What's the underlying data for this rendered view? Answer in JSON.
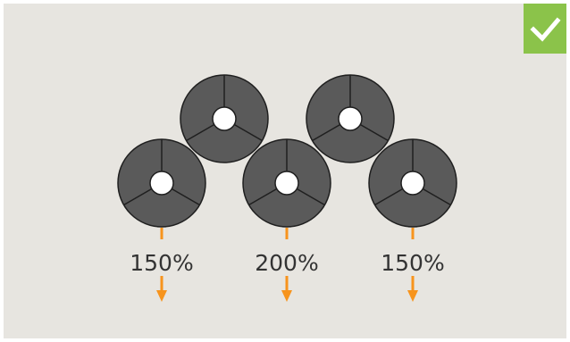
{
  "status_badge": {
    "icon": "checkmark-icon",
    "color": "#8bc34a"
  },
  "colors": {
    "background": "#e7e5e0",
    "wheel_fill": "#5a5a5a",
    "wheel_stroke": "#1f1f1f",
    "hub_fill": "#ffffff",
    "arrow": "#f7941d"
  },
  "labels": {
    "left": "150%",
    "center": "200%",
    "right": "150%"
  }
}
